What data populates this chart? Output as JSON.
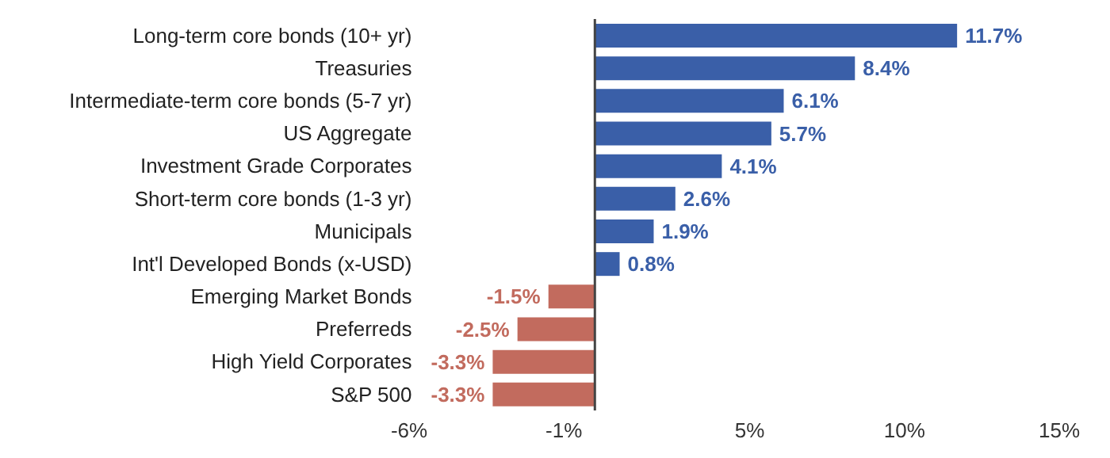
{
  "chart_data": {
    "type": "bar",
    "orientation": "horizontal",
    "categories": [
      "Long-term core bonds (10+ yr)",
      "Treasuries",
      "Intermediate-term core bonds (5-7 yr)",
      "US Aggregate",
      "Investment Grade Corporates",
      "Short-term core bonds (1-3 yr)",
      "Municipals",
      "Int'l Developed Bonds (x-USD)",
      "Emerging Market Bonds",
      "Preferreds",
      "High Yield Corporates",
      "S&P 500"
    ],
    "values": [
      11.7,
      8.4,
      6.1,
      5.7,
      4.1,
      2.6,
      1.9,
      0.8,
      -1.5,
      -2.5,
      -3.3,
      -3.3
    ],
    "colors": [
      "#3a5fa8",
      "#3a5fa8",
      "#3a5fa8",
      "#3a5fa8",
      "#3a5fa8",
      "#3a5fa8",
      "#3a5fa8",
      "#3a5fa8",
      "#c26b5e",
      "#c26b5e",
      "#c26b5e",
      "#c26b5e"
    ],
    "value_labels": [
      "11.7%",
      "8.4%",
      "6.1%",
      "5.7%",
      "4.1%",
      "2.6%",
      "1.9%",
      "0.8%",
      "-1.5%",
      "-2.5%",
      "-3.3%",
      "-3.3%"
    ],
    "xlim": [
      -6,
      15
    ],
    "xticks": [
      {
        "value": -6,
        "label": "-6%"
      },
      {
        "value": -1,
        "label": "-1%"
      },
      {
        "value": 5,
        "label": "5%"
      },
      {
        "value": 10,
        "label": "10%"
      },
      {
        "value": 15,
        "label": "15%"
      }
    ],
    "data_labels": false
  }
}
